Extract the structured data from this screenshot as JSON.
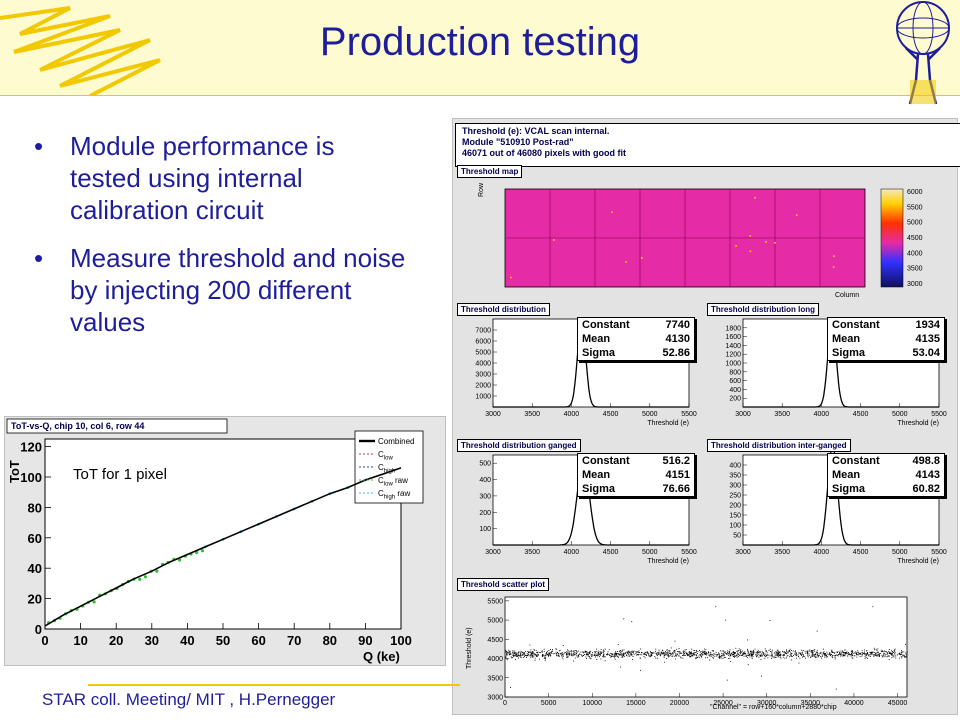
{
  "slide": {
    "title": "Production testing",
    "bullets": [
      "Module performance is tested using internal calibration circuit",
      "Measure threshold and noise by injecting 200 different values"
    ],
    "footer": "STAR coll. Meeting/ MIT , H.Pernegger",
    "bullet_glyph": "•"
  },
  "colors": {
    "title": "#1e1e9c",
    "band": "#fffbd1",
    "accent": "#f2c800",
    "map": "#e62ba6"
  },
  "threshold_panel": {
    "info_lines": [
      "Threshold (e): VCAL scan internal.",
      "Module \"510910 Post-rad\"",
      "46071 out of 46080 pixels with good fit"
    ],
    "map": {
      "title": "Threshold map",
      "ylabel": "Row",
      "xlabel": "Column",
      "scale_ticks": [
        "6000",
        "5500",
        "5000",
        "4500",
        "4000",
        "3500",
        "3000"
      ]
    },
    "histograms": [
      {
        "title": "Threshold distribution",
        "constant_label": "Constant",
        "mean_label": "Mean",
        "sigma_label": "Sigma",
        "constant": "7740",
        "mean": "4130",
        "sigma": "52.86",
        "y_ticks": [
          "7000",
          "6000",
          "5000",
          "4000",
          "3000",
          "2000",
          "1000"
        ],
        "x_ticks": [
          "3000",
          "3500",
          "4000",
          "4500",
          "5000",
          "5500"
        ],
        "xlabel": "Threshold (e)",
        "chart_data": {
          "type": "histogram",
          "mean": 4130,
          "sigma": 52.86,
          "peak": 7740,
          "xlim": [
            3000,
            5500
          ],
          "ylim": [
            0,
            8000
          ]
        }
      },
      {
        "title": "Threshold distribution long",
        "constant_label": "Constant",
        "mean_label": "Mean",
        "sigma_label": "Sigma",
        "constant": "1934",
        "mean": "4135",
        "sigma": "53.04",
        "y_ticks": [
          "1800",
          "1600",
          "1400",
          "1200",
          "1000",
          "800",
          "600",
          "400",
          "200"
        ],
        "x_ticks": [
          "3000",
          "3500",
          "4000",
          "4500",
          "5000",
          "5500"
        ],
        "xlabel": "Threshold (e)",
        "chart_data": {
          "type": "histogram",
          "mean": 4135,
          "sigma": 53.04,
          "peak": 1934,
          "xlim": [
            3000,
            5500
          ],
          "ylim": [
            0,
            2000
          ]
        }
      },
      {
        "title": "Threshold distribution ganged",
        "constant_label": "Constant",
        "mean_label": "Mean",
        "sigma_label": "Sigma",
        "constant": "516.2",
        "mean": "4151",
        "sigma": "76.66",
        "y_ticks": [
          "500",
          "400",
          "300",
          "200",
          "100"
        ],
        "x_ticks": [
          "3000",
          "3500",
          "4000",
          "4500",
          "5000",
          "5500"
        ],
        "xlabel": "Threshold (e)",
        "chart_data": {
          "type": "histogram",
          "mean": 4151,
          "sigma": 76.66,
          "peak": 516.2,
          "xlim": [
            3000,
            5500
          ],
          "ylim": [
            0,
            550
          ]
        }
      },
      {
        "title": "Threshold distribution inter-ganged",
        "constant_label": "Constant",
        "mean_label": "Mean",
        "sigma_label": "Sigma",
        "constant": "498.8",
        "mean": "4143",
        "sigma": "60.82",
        "y_ticks": [
          "400",
          "350",
          "300",
          "250",
          "200",
          "150",
          "100",
          "50"
        ],
        "x_ticks": [
          "3000",
          "3500",
          "4000",
          "4500",
          "5000",
          "5500"
        ],
        "xlabel": "Threshold (e)",
        "chart_data": {
          "type": "histogram",
          "mean": 4143,
          "sigma": 60.82,
          "peak": 498.8,
          "xlim": [
            3000,
            5500
          ],
          "ylim": [
            0,
            450
          ]
        }
      }
    ],
    "scatter": {
      "title": "Threshold scatter plot",
      "ylabel": "Threshold (e)",
      "xlabel": "\"Channel\" = row+160*column+2880*chip",
      "y_ticks": [
        "5500",
        "5000",
        "4500",
        "4000",
        "3500",
        "3000"
      ],
      "x_ticks": [
        "0",
        "5000",
        "10000",
        "15000",
        "20000",
        "25000",
        "30000",
        "35000",
        "40000",
        "45000"
      ],
      "chart_data": {
        "type": "scatter",
        "xlim": [
          0,
          46080
        ],
        "ylim": [
          3000,
          5600
        ],
        "band_center": 4130,
        "band_spread": 55
      }
    }
  },
  "tot_panel": {
    "title": "ToT-vs-Q, chip 10, col 6, row 44",
    "annotation": "ToT for 1 pixel",
    "ylabel": "ToT",
    "xlabel": "Q (ke)",
    "x_ticks": [
      "0",
      "10",
      "20",
      "30",
      "40",
      "50",
      "60",
      "70",
      "80",
      "90",
      "100"
    ],
    "y_ticks": [
      "0",
      "20",
      "40",
      "60",
      "80",
      "100",
      "120"
    ],
    "legend": [
      {
        "label": "Combined",
        "color": "#000000"
      },
      {
        "label": "C",
        "sub": "low",
        "color": "#e03030"
      },
      {
        "label": "C",
        "sub": "high",
        "color": "#2040c0"
      },
      {
        "label": "C",
        "sub": "low",
        "suffix": " raw",
        "color": "#30c030"
      },
      {
        "label": "C",
        "sub": "high",
        "suffix": " raw",
        "color": "#30c0e0"
      }
    ],
    "chart_data": {
      "type": "line",
      "xlim": [
        0,
        100
      ],
      "ylim": [
        0,
        125
      ],
      "series": [
        {
          "name": "Combined",
          "x": [
            0,
            5,
            10,
            15,
            20,
            25,
            30,
            35,
            40,
            45,
            50,
            55,
            60,
            65,
            70,
            75,
            80,
            85,
            90,
            95,
            100
          ],
          "y": [
            2,
            9,
            15,
            21,
            27,
            33,
            38,
            44,
            49,
            54,
            59,
            64,
            69,
            74,
            79,
            84,
            89,
            93,
            98,
            102,
            106
          ]
        }
      ]
    }
  }
}
